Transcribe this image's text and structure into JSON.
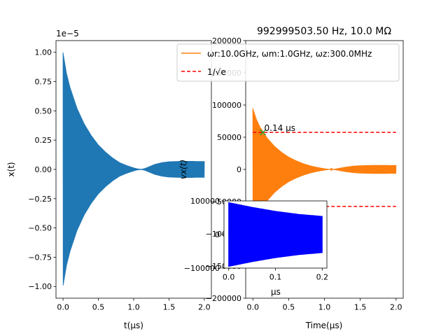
{
  "colors": {
    "left_signal": "#1f77b4",
    "right_signal": "#ff7f0e",
    "threshold": "#ff0000",
    "inset_signal": "#0000ff",
    "marker": "#2ca02c"
  },
  "chart_data": [
    {
      "type": "line",
      "title": "",
      "xlabel": "t(μs)",
      "ylabel": "x(t)",
      "offset_text": "1e−5",
      "xlim": [
        -0.1,
        2.1
      ],
      "ylim": [
        -1.1e-05,
        1.1e-05
      ],
      "x_ticks": [
        0.0,
        0.5,
        1.0,
        1.5,
        2.0
      ],
      "x_tick_labels": [
        "0.0",
        "0.5",
        "1.0",
        "1.5",
        "2.0"
      ],
      "y_ticks": [
        -1e-05,
        -7.5e-06,
        -5e-06,
        -2.5e-06,
        0,
        2.5e-06,
        5e-06,
        7.5e-06,
        1e-05
      ],
      "y_tick_labels": [
        "−1.00",
        "−0.75",
        "−0.50",
        "−0.25",
        "0.00",
        "0.25",
        "0.50",
        "0.75",
        "1.00"
      ],
      "series": [
        {
          "x": [
            0.0,
            0.05,
            0.1,
            0.2,
            0.3,
            0.4,
            0.5,
            0.6,
            0.7,
            0.8,
            0.9,
            1.0,
            1.05,
            1.1,
            1.15,
            1.2,
            1.3,
            1.4,
            1.5,
            1.6,
            1.7,
            1.8,
            1.9,
            2.0
          ],
          "envelope": [
            1e-05,
            8.2e-06,
            7e-06,
            5.2e-06,
            3.9e-06,
            2.9e-06,
            2.1e-06,
            1.5e-06,
            1e-06,
            6e-07,
            3.5e-07,
            1.5e-07,
            7e-08,
            3e-08,
            8e-08,
            2e-07,
            4.5e-07,
            6e-07,
            6.8e-07,
            7e-07,
            7.2e-07,
            7.2e-07,
            7e-07,
            7e-07
          ]
        }
      ]
    },
    {
      "type": "line",
      "title": "992999503.50 Hz, 10.0 MΩ",
      "xlabel": "Time(μs)",
      "ylabel": "vx(t)",
      "xlim": [
        -0.1,
        2.1
      ],
      "ylim": [
        -200000,
        200000
      ],
      "x_ticks": [
        0.0,
        0.5,
        1.0,
        1.5,
        2.0
      ],
      "x_tick_labels": [
        "0.0",
        "0.5",
        "1.0",
        "1.5",
        "2.0"
      ],
      "y_ticks": [
        -200000,
        -150000,
        -100000,
        -50000,
        0,
        50000,
        100000,
        150000,
        200000
      ],
      "y_tick_labels": [
        "−200000",
        "−150000",
        "−100000",
        "−50000",
        "0",
        "50000",
        "100000",
        "150000",
        "200000"
      ],
      "legend": {
        "placement": "upper-right",
        "entries": [
          {
            "label": "ωr:10.0GHz, ωm:1.0GHz, ωz:300.0MHz",
            "style": "solid"
          },
          {
            "label": "1/√e",
            "style": "dashed"
          }
        ]
      },
      "threshold_levels": [
        57500,
        -57500
      ],
      "threshold_x_range": [
        0.0,
        2.0
      ],
      "annotation": {
        "text": "0.14 μs",
        "x": 0.14,
        "y": 57500
      },
      "series": [
        {
          "x": [
            0.0,
            0.05,
            0.1,
            0.2,
            0.3,
            0.4,
            0.5,
            0.6,
            0.7,
            0.8,
            0.9,
            1.0,
            1.05,
            1.1,
            1.15,
            1.2,
            1.3,
            1.4,
            1.5,
            1.6,
            1.7,
            1.8,
            1.9,
            2.0
          ],
          "envelope": [
            95000,
            78000,
            66000,
            49000,
            36500,
            27000,
            19500,
            14000,
            9500,
            6000,
            3500,
            1500,
            700,
            400,
            900,
            2000,
            4000,
            5500,
            6200,
            6600,
            6800,
            6800,
            6700,
            6600
          ]
        }
      ]
    },
    {
      "type": "line",
      "title": "",
      "xlabel": "μs",
      "ylabel": "",
      "xlim": [
        -0.01,
        0.21
      ],
      "ylim": [
        -100000,
        100000
      ],
      "x_ticks": [
        0.0,
        0.1,
        0.2
      ],
      "x_tick_labels": [
        "0.0",
        "0.1",
        "0.2"
      ],
      "y_ticks": [
        -100000,
        0,
        100000
      ],
      "y_tick_labels": [
        "−100000",
        "0",
        "100000"
      ],
      "series": [
        {
          "x": [
            0.0,
            0.05,
            0.1,
            0.15,
            0.2
          ],
          "envelope": [
            95000,
            81000,
            69000,
            60000,
            54000
          ]
        }
      ]
    }
  ]
}
